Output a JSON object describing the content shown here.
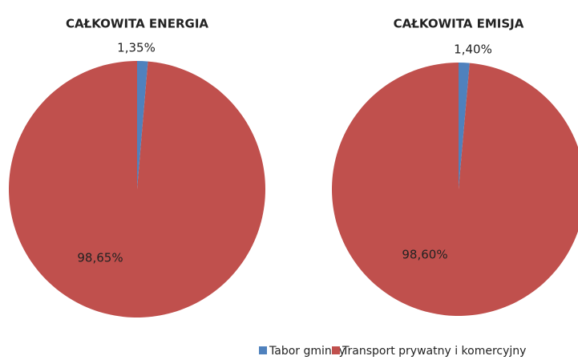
{
  "chart_data": [
    {
      "type": "pie",
      "title": "CAŁKOWITA ENERGIA",
      "categories": [
        "Tabor gminny",
        "Transport prywatny i komercyjny"
      ],
      "values": [
        1.35,
        98.65
      ],
      "value_labels": [
        "1,35%",
        "98,65%"
      ],
      "colors": [
        "#4f81bd",
        "#c0504d"
      ],
      "legend": "bottom"
    },
    {
      "type": "pie",
      "title": "CAŁKOWITA EMISJA",
      "categories": [
        "Tabor gminny",
        "Transport prywatny i komercyjny"
      ],
      "values": [
        1.4,
        98.6
      ],
      "value_labels": [
        "1,40%",
        "98,60%"
      ],
      "colors": [
        "#4f81bd",
        "#c0504d"
      ],
      "legend": "bottom"
    }
  ]
}
